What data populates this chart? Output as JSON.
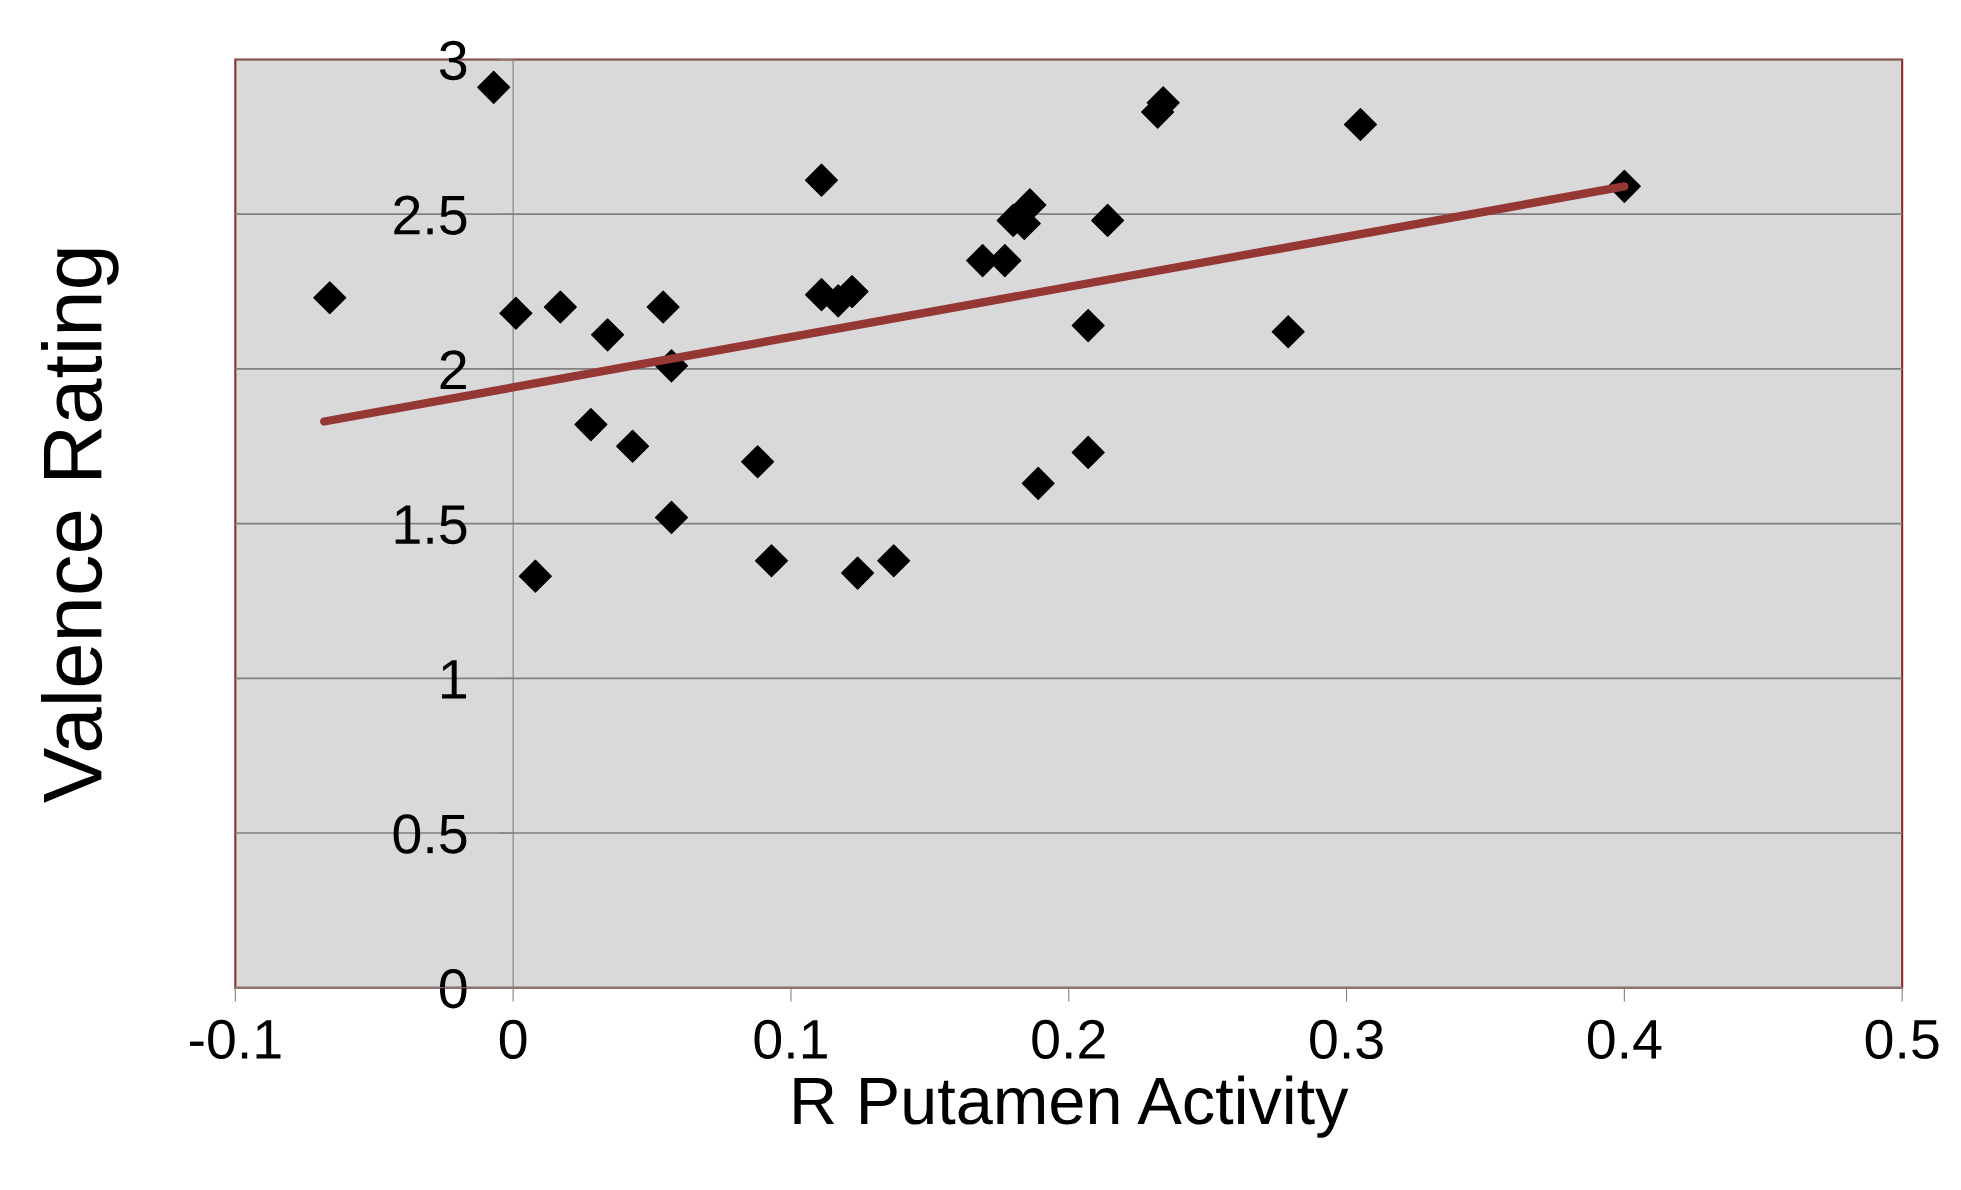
{
  "chart_data": {
    "type": "scatter",
    "xlabel": "R Putamen Activity",
    "ylabel": "Valence Rating",
    "xlim": [
      -0.1,
      0.5
    ],
    "xticks": [
      -0.1,
      0,
      0.1,
      0.2,
      0.3,
      0.4,
      0.5
    ],
    "ylim": [
      0,
      3
    ],
    "yticks": [
      0,
      0.5,
      1,
      1.5,
      2,
      2.5,
      3
    ],
    "grid": "y",
    "legend": false,
    "series": [
      {
        "color": "#000000",
        "marker": "diamond",
        "x": [
          -0.066,
          -0.007,
          0.001,
          0.008,
          0.017,
          0.028,
          0.034,
          0.043,
          0.054,
          0.057,
          0.057,
          0.088,
          0.093,
          0.111,
          0.111,
          0.117,
          0.122,
          0.124,
          0.137,
          0.169,
          0.177,
          0.18,
          0.184,
          0.186,
          0.189,
          0.207,
          0.207,
          0.214,
          0.232,
          0.234,
          0.279,
          0.305,
          0.4
        ],
        "values": [
          2.23,
          2.91,
          2.18,
          1.33,
          2.2,
          1.82,
          2.11,
          1.75,
          2.2,
          2.01,
          1.52,
          1.7,
          1.38,
          2.61,
          2.24,
          2.22,
          2.25,
          1.34,
          1.38,
          2.35,
          2.35,
          2.48,
          2.47,
          2.53,
          1.63,
          2.14,
          1.73,
          2.48,
          2.83,
          2.86,
          2.12,
          2.79,
          2.59
        ]
      },
      {
        "type": "line",
        "color": "#953735",
        "marker": "none",
        "line_style": "solid",
        "x": [
          -0.068,
          0.4
        ],
        "values": [
          1.83,
          2.59
        ]
      }
    ]
  }
}
